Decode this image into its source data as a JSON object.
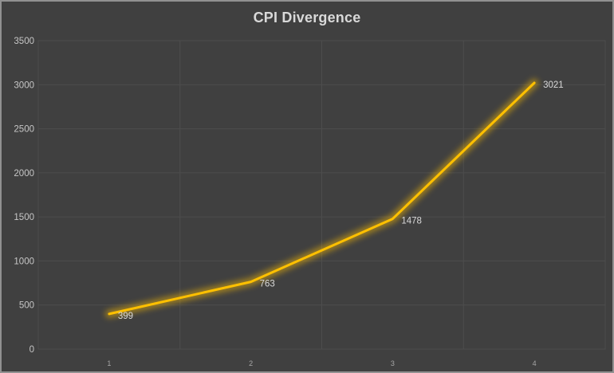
{
  "window": {
    "background": "#404040",
    "frame_border_color": "#919191"
  },
  "chart_data": {
    "type": "line",
    "title": "CPI Divergence",
    "xlabel": "",
    "ylabel": "",
    "categories": [
      "1",
      "2",
      "3",
      "4"
    ],
    "series": [
      {
        "name": "CPI Divergence",
        "values": [
          399,
          763,
          1478,
          3021
        ]
      }
    ],
    "data_labels": [
      "399",
      "763",
      "1478",
      "3021"
    ],
    "ylim": [
      0,
      3500
    ],
    "ytick_step": 500,
    "ytick_labels": [
      "0",
      "500",
      "1000",
      "1500",
      "2000",
      "2500",
      "3000",
      "3500"
    ],
    "grid": {
      "horizontal": true,
      "vertical": true
    },
    "legend": "none",
    "line_style": {
      "glow": true,
      "width": 3
    },
    "colors": {
      "line": "#FFC000",
      "glow": "#FFC000",
      "gridline": "#4D4D4D",
      "plot_border": "#4D4D4D",
      "title_text": "#D9D9D9",
      "ytick_text": "#C6C6C6",
      "xtick_text": "#A6A6A6",
      "data_label_text": "#D9D9D9",
      "background": "#404040"
    }
  }
}
